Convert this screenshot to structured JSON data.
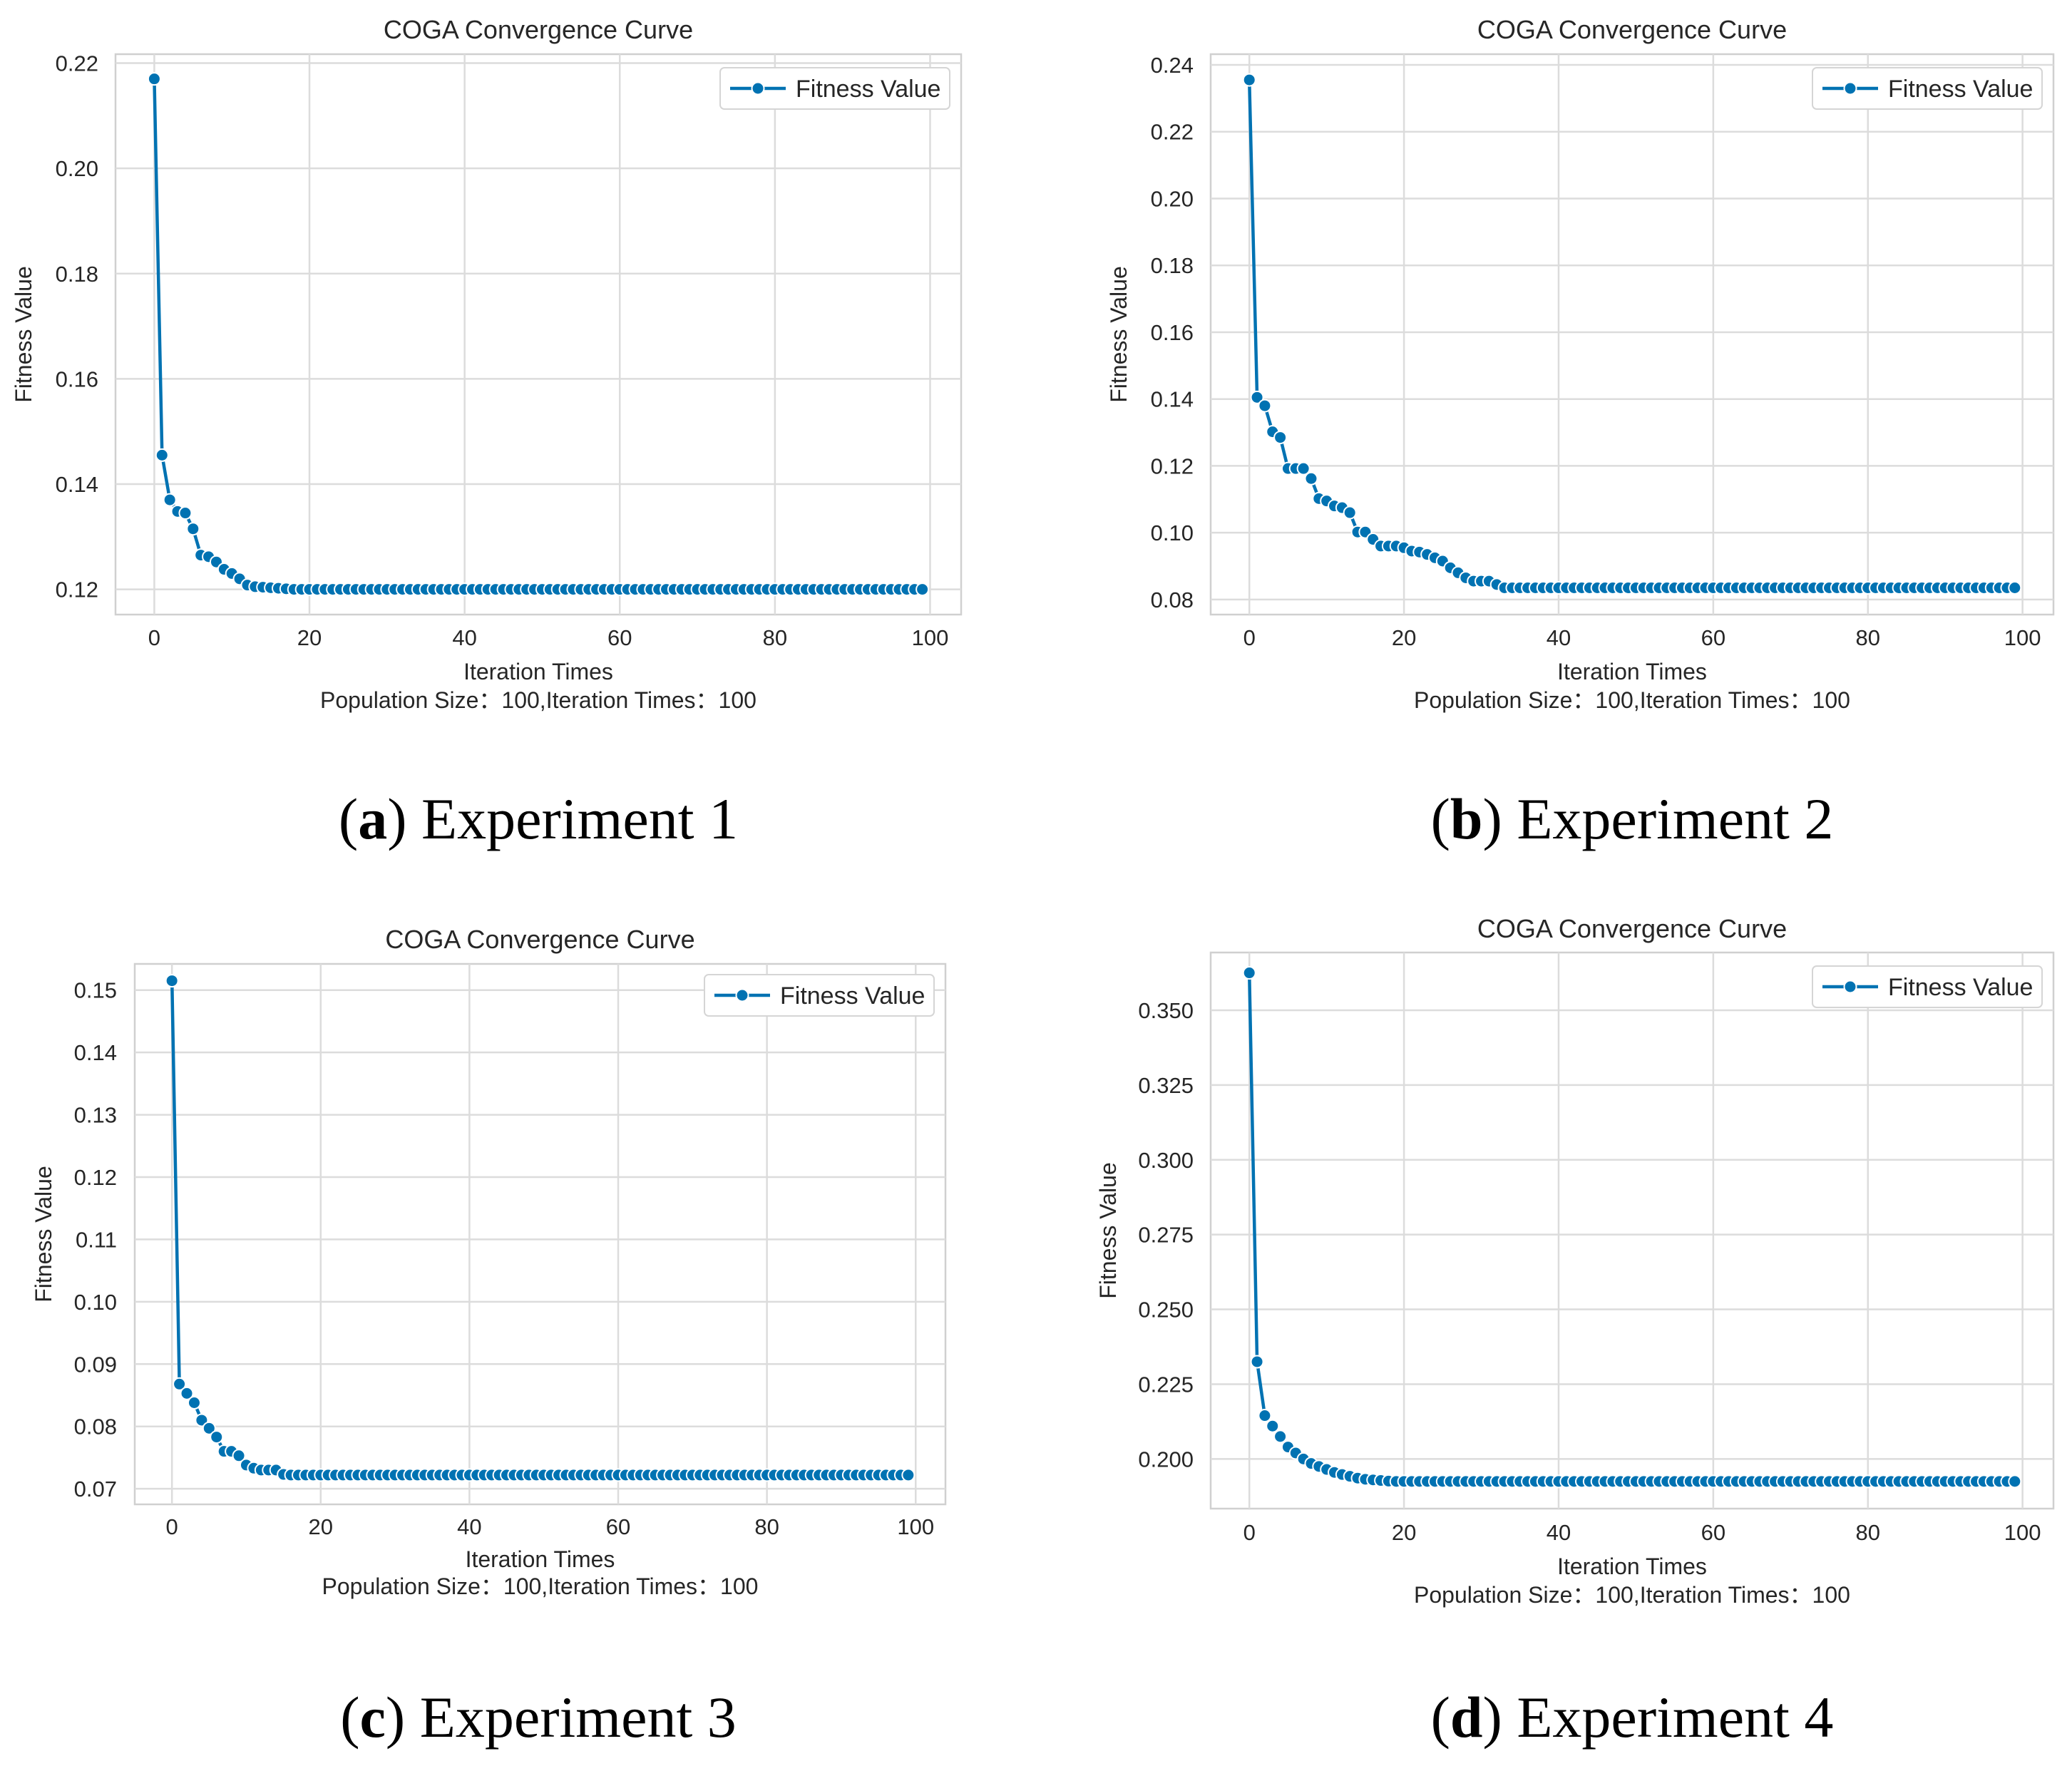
{
  "colors": {
    "series": "#0072B2",
    "grid": "#dcdcdc",
    "text": "#262626"
  },
  "chart_data": [
    {
      "type": "line",
      "title": "COGA Convergence Curve",
      "xlabel": "Iteration Times",
      "subtitle": "Population Size：100,Iteration Times：100",
      "ylabel": "Fitness Value",
      "legend": "Fitness Value",
      "legend_position": "top-right",
      "grid": true,
      "xlim": [
        -5,
        104
      ],
      "ylim": [
        0.1152,
        0.2217
      ],
      "xticks": [
        0,
        20,
        40,
        60,
        80,
        100
      ],
      "yticks": [
        0.12,
        0.14,
        0.16,
        0.18,
        0.2,
        0.22
      ],
      "ytick_labels": [
        "0.12",
        "0.14",
        "0.16",
        "0.18",
        "0.20",
        "0.22"
      ],
      "series": [
        {
          "name": "Fitness Value",
          "values": [
            0.217,
            0.1455,
            0.137,
            0.1348,
            0.1345,
            0.1315,
            0.1265,
            0.1262,
            0.1252,
            0.1238,
            0.123,
            0.122,
            0.1208,
            0.1205,
            0.1204,
            0.1203,
            0.1202,
            0.1201,
            0.12,
            0.12,
            0.12,
            0.12,
            0.12,
            0.12,
            0.12,
            0.12,
            0.12,
            0.12,
            0.12,
            0.12,
            0.12,
            0.12,
            0.12,
            0.12,
            0.12,
            0.12,
            0.12,
            0.12,
            0.12,
            0.12,
            0.12,
            0.12,
            0.12,
            0.12,
            0.12,
            0.12,
            0.12,
            0.12,
            0.12,
            0.12,
            0.12,
            0.12,
            0.12,
            0.12,
            0.12,
            0.12,
            0.12,
            0.12,
            0.12,
            0.12,
            0.12,
            0.12,
            0.12,
            0.12,
            0.12,
            0.12,
            0.12,
            0.12,
            0.12,
            0.12,
            0.12,
            0.12,
            0.12,
            0.12,
            0.12,
            0.12,
            0.12,
            0.12,
            0.12,
            0.12,
            0.12,
            0.12,
            0.12,
            0.12,
            0.12,
            0.12,
            0.12,
            0.12,
            0.12,
            0.12,
            0.12,
            0.12,
            0.12,
            0.12,
            0.12,
            0.12,
            0.12,
            0.12,
            0.12,
            0.12
          ]
        }
      ],
      "caption": {
        "letter": "a",
        "text": "Experiment 1"
      }
    },
    {
      "type": "line",
      "title": "COGA Convergence Curve",
      "xlabel": "Iteration Times",
      "subtitle": "Population Size：100,Iteration Times：100",
      "ylabel": "Fitness Value",
      "legend": "Fitness Value",
      "legend_position": "top-right",
      "grid": true,
      "xlim": [
        -5,
        104
      ],
      "ylim": [
        0.0755,
        0.2432
      ],
      "xticks": [
        0,
        20,
        40,
        60,
        80,
        100
      ],
      "yticks": [
        0.08,
        0.1,
        0.12,
        0.14,
        0.16,
        0.18,
        0.2,
        0.22,
        0.24
      ],
      "ytick_labels": [
        "0.08",
        "0.10",
        "0.12",
        "0.14",
        "0.16",
        "0.18",
        "0.20",
        "0.22",
        "0.24"
      ],
      "series": [
        {
          "name": "Fitness Value",
          "values": [
            0.2355,
            0.1405,
            0.138,
            0.1302,
            0.1285,
            0.1192,
            0.1192,
            0.1192,
            0.1162,
            0.1102,
            0.1095,
            0.108,
            0.1075,
            0.106,
            0.1002,
            0.1002,
            0.098,
            0.096,
            0.096,
            0.096,
            0.0955,
            0.0945,
            0.0942,
            0.0935,
            0.0925,
            0.0915,
            0.0895,
            0.088,
            0.0865,
            0.0855,
            0.0855,
            0.0855,
            0.0845,
            0.0835,
            0.0835,
            0.0835,
            0.0835,
            0.0835,
            0.0835,
            0.0835,
            0.0835,
            0.0835,
            0.0835,
            0.0835,
            0.0835,
            0.0835,
            0.0835,
            0.0835,
            0.0835,
            0.0835,
            0.0835,
            0.0835,
            0.0835,
            0.0835,
            0.0835,
            0.0835,
            0.0835,
            0.0835,
            0.0835,
            0.0835,
            0.0835,
            0.0835,
            0.0835,
            0.0835,
            0.0835,
            0.0835,
            0.0835,
            0.0835,
            0.0835,
            0.0835,
            0.0835,
            0.0835,
            0.0835,
            0.0835,
            0.0835,
            0.0835,
            0.0835,
            0.0835,
            0.0835,
            0.0835,
            0.0835,
            0.0835,
            0.0835,
            0.0835,
            0.0835,
            0.0835,
            0.0835,
            0.0835,
            0.0835,
            0.0835,
            0.0835,
            0.0835,
            0.0835,
            0.0835,
            0.0835,
            0.0835,
            0.0835,
            0.0835,
            0.0835,
            0.0835
          ]
        }
      ],
      "caption": {
        "letter": "b",
        "text": "Experiment 2"
      }
    },
    {
      "type": "line",
      "title": "COGA Convergence Curve",
      "xlabel": "Iteration Times",
      "subtitle": "Population Size：100,Iteration Times：100",
      "ylabel": "Fitness Value",
      "legend": "Fitness Value",
      "legend_position": "top-right",
      "grid": true,
      "xlim": [
        -5,
        104
      ],
      "ylim": [
        0.0675,
        0.1542
      ],
      "xticks": [
        0,
        20,
        40,
        60,
        80,
        100
      ],
      "yticks": [
        0.07,
        0.08,
        0.09,
        0.1,
        0.11,
        0.12,
        0.13,
        0.14,
        0.15
      ],
      "ytick_labels": [
        "0.07",
        "0.08",
        "0.09",
        "0.10",
        "0.11",
        "0.12",
        "0.13",
        "0.14",
        "0.15"
      ],
      "series": [
        {
          "name": "Fitness Value",
          "values": [
            0.1515,
            0.0868,
            0.0853,
            0.0838,
            0.081,
            0.0797,
            0.0783,
            0.076,
            0.076,
            0.0753,
            0.0738,
            0.0733,
            0.073,
            0.073,
            0.073,
            0.0723,
            0.0722,
            0.0722,
            0.0722,
            0.0722,
            0.0722,
            0.0722,
            0.0722,
            0.0722,
            0.0722,
            0.0722,
            0.0722,
            0.0722,
            0.0722,
            0.0722,
            0.0722,
            0.0722,
            0.0722,
            0.0722,
            0.0722,
            0.0722,
            0.0722,
            0.0722,
            0.0722,
            0.0722,
            0.0722,
            0.0722,
            0.0722,
            0.0722,
            0.0722,
            0.0722,
            0.0722,
            0.0722,
            0.0722,
            0.0722,
            0.0722,
            0.0722,
            0.0722,
            0.0722,
            0.0722,
            0.0722,
            0.0722,
            0.0722,
            0.0722,
            0.0722,
            0.0722,
            0.0722,
            0.0722,
            0.0722,
            0.0722,
            0.0722,
            0.0722,
            0.0722,
            0.0722,
            0.0722,
            0.0722,
            0.0722,
            0.0722,
            0.0722,
            0.0722,
            0.0722,
            0.0722,
            0.0722,
            0.0722,
            0.0722,
            0.0722,
            0.0722,
            0.0722,
            0.0722,
            0.0722,
            0.0722,
            0.0722,
            0.0722,
            0.0722,
            0.0722,
            0.0722,
            0.0722,
            0.0722,
            0.0722,
            0.0722,
            0.0722,
            0.0722,
            0.0722,
            0.0722,
            0.0722
          ]
        }
      ],
      "caption": {
        "letter": "c",
        "text": "Experiment 3"
      }
    },
    {
      "type": "line",
      "title": "COGA Convergence Curve",
      "xlabel": "Iteration Times",
      "subtitle": "Population Size：100,Iteration Times：100",
      "ylabel": "Fitness Value",
      "legend": "Fitness Value",
      "legend_position": "top-right",
      "grid": true,
      "xlim": [
        -5,
        104
      ],
      "ylim": [
        0.1834,
        0.3693
      ],
      "xticks": [
        0,
        20,
        40,
        60,
        80,
        100
      ],
      "yticks": [
        0.2,
        0.225,
        0.25,
        0.275,
        0.3,
        0.325,
        0.35
      ],
      "ytick_labels": [
        "0.200",
        "0.225",
        "0.250",
        "0.275",
        "0.300",
        "0.325",
        "0.350"
      ],
      "series": [
        {
          "name": "Fitness Value",
          "values": [
            0.3625,
            0.2325,
            0.2145,
            0.211,
            0.2075,
            0.204,
            0.202,
            0.2,
            0.1985,
            0.1975,
            0.1965,
            0.1955,
            0.1948,
            0.1942,
            0.1936,
            0.1932,
            0.193,
            0.1928,
            0.1926,
            0.1925,
            0.1925,
            0.1925,
            0.1925,
            0.1925,
            0.1925,
            0.1925,
            0.1925,
            0.1925,
            0.1925,
            0.1925,
            0.1925,
            0.1925,
            0.1925,
            0.1925,
            0.1925,
            0.1925,
            0.1925,
            0.1925,
            0.1925,
            0.1925,
            0.1925,
            0.1925,
            0.1925,
            0.1925,
            0.1925,
            0.1925,
            0.1925,
            0.1925,
            0.1925,
            0.1925,
            0.1925,
            0.1925,
            0.1925,
            0.1925,
            0.1925,
            0.1925,
            0.1925,
            0.1925,
            0.1925,
            0.1925,
            0.1925,
            0.1925,
            0.1925,
            0.1925,
            0.1925,
            0.1925,
            0.1925,
            0.1925,
            0.1925,
            0.1925,
            0.1925,
            0.1925,
            0.1925,
            0.1925,
            0.1925,
            0.1925,
            0.1925,
            0.1925,
            0.1925,
            0.1925,
            0.1925,
            0.1925,
            0.1925,
            0.1925,
            0.1925,
            0.1925,
            0.1925,
            0.1925,
            0.1925,
            0.1925,
            0.1925,
            0.1925,
            0.1925,
            0.1925,
            0.1925,
            0.1925,
            0.1925,
            0.1925,
            0.1925,
            0.1925
          ]
        }
      ],
      "caption": {
        "letter": "d",
        "text": "Experiment 4"
      }
    }
  ]
}
